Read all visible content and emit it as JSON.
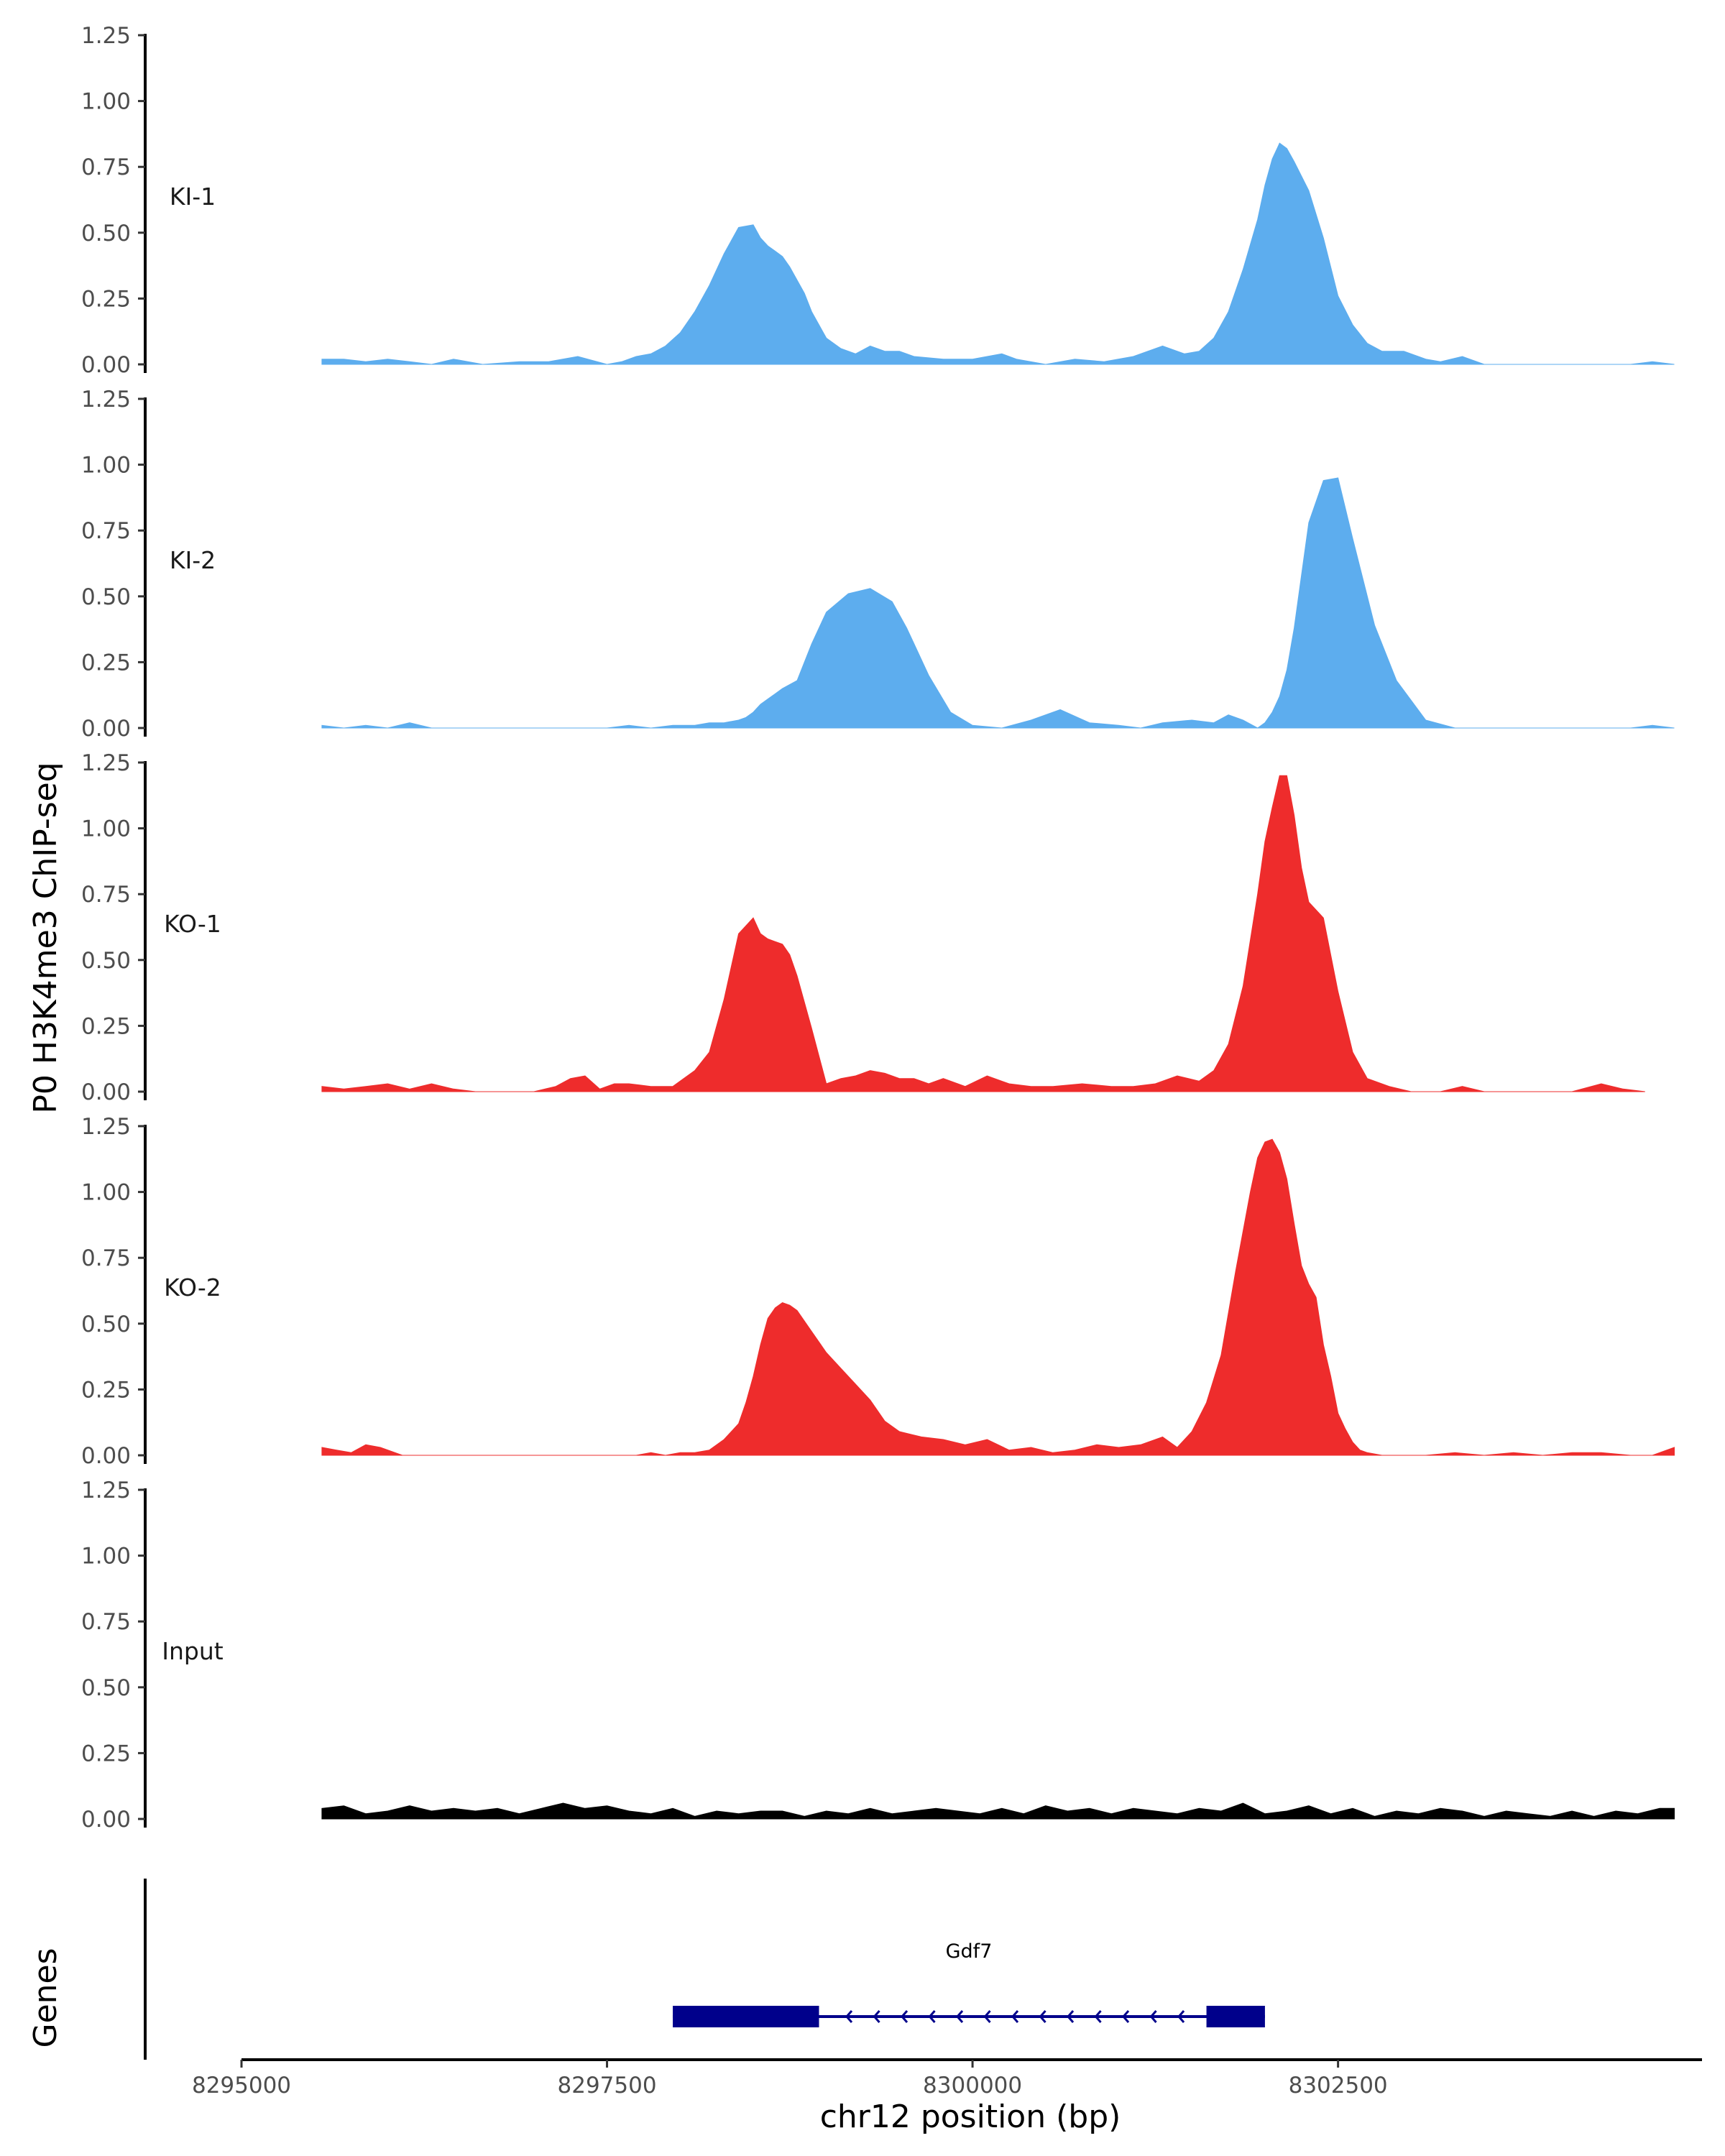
{
  "chart_data": {
    "type": "area",
    "ylabel": "P0 H3K4me3 ChIP-seq",
    "xlabel": "chr12 position (bp)",
    "xlim": [
      8295000,
      8304950
    ],
    "ylim": [
      0,
      1.25
    ],
    "yticks": [
      "0.00",
      "0.25",
      "0.50",
      "0.75",
      "1.00",
      "1.25"
    ],
    "xticks": [
      {
        "value": 8295000,
        "label": "8295000"
      },
      {
        "value": 8297500,
        "label": "8297500"
      },
      {
        "value": 8300000,
        "label": "8300000"
      },
      {
        "value": 8302500,
        "label": "8302500"
      }
    ],
    "tracks": [
      {
        "name": "KI-1",
        "color": "#5dadee",
        "x": [
          8295550,
          8295700,
          8295850,
          8296000,
          8296150,
          8296300,
          8296450,
          8296650,
          8296900,
          8297100,
          8297300,
          8297500,
          8297600,
          8297700,
          8297800,
          8297900,
          8298000,
          8298100,
          8298200,
          8298300,
          8298400,
          8298500,
          8298550,
          8298600,
          8298650,
          8298700,
          8298750,
          8298800,
          8298850,
          8298900,
          8299000,
          8299100,
          8299200,
          8299300,
          8299400,
          8299500,
          8299600,
          8299800,
          8300000,
          8300200,
          8300300,
          8300500,
          8300700,
          8300900,
          8301100,
          8301300,
          8301450,
          8301550,
          8301650,
          8301750,
          8301850,
          8301950,
          8302000,
          8302050,
          8302100,
          8302150,
          8302200,
          8302300,
          8302400,
          8302500,
          8302600,
          8302700,
          8302800,
          8302950,
          8303100,
          8303200,
          8303350,
          8303500,
          8303700,
          8303900,
          8304100,
          8304300,
          8304500,
          8304650,
          8304800
        ],
        "values": [
          0.02,
          0.02,
          0.01,
          0.02,
          0.01,
          0.0,
          0.02,
          0.0,
          0.01,
          0.01,
          0.03,
          0.0,
          0.01,
          0.03,
          0.04,
          0.07,
          0.12,
          0.2,
          0.3,
          0.42,
          0.52,
          0.53,
          0.48,
          0.45,
          0.43,
          0.41,
          0.37,
          0.32,
          0.27,
          0.2,
          0.1,
          0.06,
          0.04,
          0.07,
          0.05,
          0.05,
          0.03,
          0.02,
          0.02,
          0.04,
          0.02,
          0.0,
          0.02,
          0.01,
          0.03,
          0.07,
          0.04,
          0.05,
          0.1,
          0.2,
          0.36,
          0.55,
          0.68,
          0.78,
          0.84,
          0.82,
          0.77,
          0.66,
          0.48,
          0.26,
          0.15,
          0.08,
          0.05,
          0.05,
          0.02,
          0.01,
          0.03,
          0.0,
          0.0,
          0.0,
          0.0,
          0.0,
          0.0,
          0.01,
          0.0
        ]
      },
      {
        "name": "KI-2",
        "color": "#5dadee",
        "x": [
          8295550,
          8295700,
          8295850,
          8296000,
          8296150,
          8296300,
          8296500,
          8296700,
          8296900,
          8297100,
          8297300,
          8297500,
          8297650,
          8297800,
          8297950,
          8298100,
          8298200,
          8298300,
          8298400,
          8298450,
          8298500,
          8298550,
          8298600,
          8298650,
          8298700,
          8298800,
          8298900,
          8299000,
          8299150,
          8299300,
          8299450,
          8299550,
          8299700,
          8299850,
          8300000,
          8300200,
          8300400,
          8300600,
          8300800,
          8301000,
          8301150,
          8301300,
          8301500,
          8301650,
          8301750,
          8301850,
          8301950,
          8302000,
          8302050,
          8302100,
          8302150,
          8302200,
          8302300,
          8302400,
          8302500,
          8302600,
          8302750,
          8302900,
          8303100,
          8303300,
          8303500,
          8303700,
          8303900,
          8304100,
          8304300,
          8304500,
          8304650,
          8304800
        ],
        "values": [
          0.01,
          0.0,
          0.01,
          0.0,
          0.02,
          0.0,
          0.0,
          0.0,
          0.0,
          0.0,
          0.0,
          0.0,
          0.01,
          0.0,
          0.01,
          0.01,
          0.02,
          0.02,
          0.03,
          0.04,
          0.06,
          0.09,
          0.11,
          0.13,
          0.15,
          0.18,
          0.32,
          0.44,
          0.51,
          0.53,
          0.48,
          0.38,
          0.2,
          0.06,
          0.01,
          0.0,
          0.03,
          0.07,
          0.02,
          0.01,
          0.0,
          0.02,
          0.03,
          0.02,
          0.05,
          0.03,
          0.0,
          0.02,
          0.06,
          0.12,
          0.22,
          0.38,
          0.78,
          0.94,
          0.95,
          0.72,
          0.39,
          0.18,
          0.03,
          0.0,
          0.0,
          0.0,
          0.0,
          0.0,
          0.0,
          0.0,
          0.01,
          0.0
        ]
      },
      {
        "name": "KO-1",
        "color": "#ee2c2c",
        "x": [
          8295550,
          8295700,
          8295850,
          8296000,
          8296150,
          8296300,
          8296450,
          8296600,
          8296800,
          8297000,
          8297150,
          8297250,
          8297350,
          8297450,
          8297550,
          8297650,
          8297800,
          8297950,
          8298100,
          8298200,
          8298300,
          8298400,
          8298500,
          8298550,
          8298600,
          8298650,
          8298700,
          8298750,
          8298800,
          8298900,
          8299000,
          8299100,
          8299200,
          8299300,
          8299400,
          8299500,
          8299600,
          8299700,
          8299800,
          8299950,
          8300100,
          8300250,
          8300400,
          8300550,
          8300750,
          8300950,
          8301100,
          8301250,
          8301400,
          8301550,
          8301650,
          8301750,
          8301850,
          8301950,
          8302000,
          8302050,
          8302100,
          8302150,
          8302200,
          8302250,
          8302300,
          8302400,
          8302500,
          8302600,
          8302700,
          8302850,
          8303000,
          8303200,
          8303350,
          8303500,
          8303700,
          8303900,
          8304100,
          8304300,
          8304450,
          8304600
        ],
        "values": [
          0.02,
          0.01,
          0.02,
          0.03,
          0.01,
          0.03,
          0.01,
          0.0,
          0.0,
          0.0,
          0.02,
          0.05,
          0.06,
          0.01,
          0.03,
          0.03,
          0.02,
          0.02,
          0.08,
          0.15,
          0.35,
          0.6,
          0.66,
          0.6,
          0.58,
          0.57,
          0.56,
          0.52,
          0.44,
          0.24,
          0.03,
          0.05,
          0.06,
          0.08,
          0.07,
          0.05,
          0.05,
          0.03,
          0.05,
          0.02,
          0.06,
          0.03,
          0.02,
          0.02,
          0.03,
          0.02,
          0.02,
          0.03,
          0.06,
          0.04,
          0.08,
          0.18,
          0.4,
          0.75,
          0.95,
          1.08,
          1.2,
          1.2,
          1.05,
          0.85,
          0.72,
          0.66,
          0.38,
          0.15,
          0.05,
          0.02,
          0.0,
          0.0,
          0.02,
          0.0,
          0.0,
          0.0,
          0.0,
          0.03,
          0.01,
          0.0
        ]
      },
      {
        "name": "KO-2",
        "color": "#ee2c2c",
        "x": [
          8295550,
          8295650,
          8295750,
          8295850,
          8295950,
          8296100,
          8296300,
          8296600,
          8296900,
          8297200,
          8297500,
          8297700,
          8297800,
          8297900,
          8298000,
          8298100,
          8298200,
          8298300,
          8298400,
          8298450,
          8298500,
          8298550,
          8298600,
          8298650,
          8298700,
          8298750,
          8298800,
          8298900,
          8299000,
          8299100,
          8299200,
          8299300,
          8299400,
          8299500,
          8299650,
          8299800,
          8299950,
          8300100,
          8300250,
          8300400,
          8300550,
          8300700,
          8300850,
          8301000,
          8301150,
          8301300,
          8301400,
          8301500,
          8301600,
          8301700,
          8301800,
          8301900,
          8301950,
          8302000,
          8302050,
          8302100,
          8302150,
          8302200,
          8302250,
          8302300,
          8302350,
          8302400,
          8302450,
          8302500,
          8302550,
          8302600,
          8302650,
          8302700,
          8302800,
          8302900,
          8303100,
          8303300,
          8303500,
          8303700,
          8303900,
          8304100,
          8304300,
          8304500,
          8304650,
          8304800
        ],
        "values": [
          0.03,
          0.02,
          0.01,
          0.04,
          0.03,
          0.0,
          0.0,
          0.0,
          0.0,
          0.0,
          0.0,
          0.0,
          0.01,
          0.0,
          0.01,
          0.01,
          0.02,
          0.06,
          0.12,
          0.2,
          0.3,
          0.42,
          0.52,
          0.56,
          0.58,
          0.57,
          0.55,
          0.47,
          0.39,
          0.33,
          0.27,
          0.21,
          0.13,
          0.09,
          0.07,
          0.06,
          0.04,
          0.06,
          0.02,
          0.03,
          0.01,
          0.02,
          0.04,
          0.03,
          0.04,
          0.07,
          0.03,
          0.09,
          0.2,
          0.38,
          0.7,
          1.0,
          1.13,
          1.19,
          1.2,
          1.15,
          1.05,
          0.88,
          0.72,
          0.65,
          0.6,
          0.42,
          0.3,
          0.16,
          0.1,
          0.05,
          0.02,
          0.01,
          0.0,
          0.0,
          0.0,
          0.01,
          0.0,
          0.01,
          0.0,
          0.01,
          0.01,
          0.0,
          0.0,
          0.03
        ]
      },
      {
        "name": "Input",
        "color": "#000000",
        "x": [
          8295550,
          8295700,
          8295850,
          8296000,
          8296150,
          8296300,
          8296450,
          8296600,
          8296750,
          8296900,
          8297050,
          8297200,
          8297350,
          8297500,
          8297650,
          8297800,
          8297950,
          8298100,
          8298250,
          8298400,
          8298550,
          8298700,
          8298850,
          8299000,
          8299150,
          8299300,
          8299450,
          8299600,
          8299750,
          8299900,
          8300050,
          8300200,
          8300350,
          8300500,
          8300650,
          8300800,
          8300950,
          8301100,
          8301250,
          8301400,
          8301550,
          8301700,
          8301850,
          8302000,
          8302150,
          8302300,
          8302450,
          8302600,
          8302750,
          8302900,
          8303050,
          8303200,
          8303350,
          8303500,
          8303650,
          8303800,
          8303950,
          8304100,
          8304250,
          8304400,
          8304550,
          8304700,
          8304800
        ],
        "values": [
          0.04,
          0.05,
          0.02,
          0.03,
          0.05,
          0.03,
          0.04,
          0.03,
          0.04,
          0.02,
          0.04,
          0.06,
          0.04,
          0.05,
          0.03,
          0.02,
          0.04,
          0.01,
          0.03,
          0.02,
          0.03,
          0.03,
          0.01,
          0.03,
          0.02,
          0.04,
          0.02,
          0.03,
          0.04,
          0.03,
          0.02,
          0.04,
          0.02,
          0.05,
          0.03,
          0.04,
          0.02,
          0.04,
          0.03,
          0.02,
          0.04,
          0.03,
          0.06,
          0.02,
          0.03,
          0.05,
          0.02,
          0.04,
          0.01,
          0.03,
          0.02,
          0.04,
          0.03,
          0.01,
          0.03,
          0.02,
          0.01,
          0.03,
          0.01,
          0.03,
          0.02,
          0.04,
          0.04
        ]
      }
    ],
    "genes": {
      "title": "Genes",
      "items": [
        {
          "name": "Gdf7",
          "strand": "-",
          "start": 8297950,
          "end": 8302000,
          "exons": [
            [
              8297950,
              8298950
            ],
            [
              8301600,
              8302000
            ]
          ],
          "color": "#00008b"
        }
      ]
    },
    "grid": false,
    "legend": "none"
  }
}
